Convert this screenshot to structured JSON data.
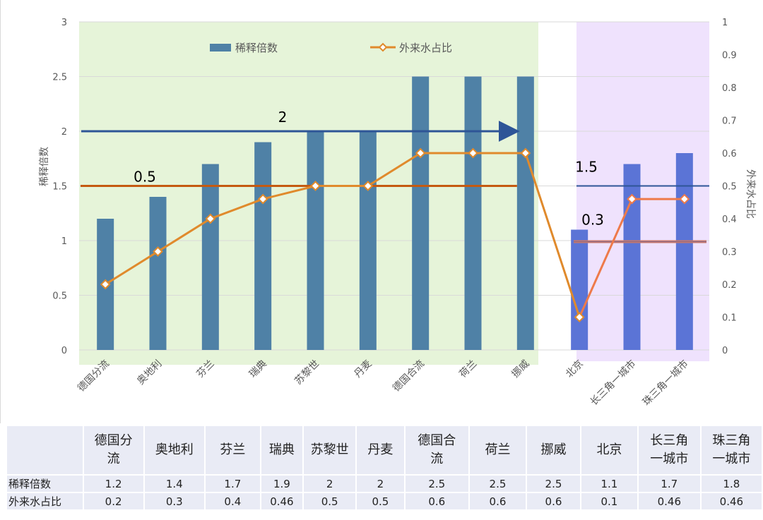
{
  "chart_data": {
    "type": "bar",
    "categories": [
      "德国分流",
      "奥地利",
      "芬兰",
      "瑞典",
      "苏黎世",
      "丹麦",
      "德国合流",
      "荷兰",
      "挪威",
      "北京",
      "长三角一城市",
      "珠三角一城市"
    ],
    "series": [
      {
        "name": "稀释倍数",
        "type": "bar",
        "axis": "left",
        "values": [
          1.2,
          1.4,
          1.7,
          1.9,
          2,
          2,
          2.5,
          2.5,
          2.5,
          1.1,
          1.7,
          1.8
        ]
      },
      {
        "name": "外来水占比",
        "type": "line",
        "axis": "right",
        "values": [
          0.2,
          0.3,
          0.4,
          0.46,
          0.5,
          0.5,
          0.6,
          0.6,
          0.6,
          0.1,
          0.46,
          0.46
        ]
      }
    ],
    "ylabel": "稀释倍数",
    "y2label": "外来水占比",
    "ylim": [
      0,
      3
    ],
    "y2lim": [
      0,
      1
    ],
    "yticks": [
      "0",
      "0.5",
      "1",
      "1.5",
      "2",
      "2.5",
      "3"
    ],
    "y2ticks": [
      "0",
      "0.1",
      "0.2",
      "0.3",
      "0.4",
      "0.5",
      "0.6",
      "0.7",
      "0.8",
      "0.9",
      "1"
    ],
    "grid": true,
    "legend": "top",
    "annotations": [
      {
        "text": "2",
        "ref_value": 2,
        "axis": "left",
        "from": 0,
        "to": 8,
        "color": "#2e5597",
        "arrow": true
      },
      {
        "text": "0.5",
        "ref_value": 0.5,
        "axis": "right",
        "from": 0,
        "to": 8,
        "color": "#c55a11"
      },
      {
        "text": "1.5",
        "ref_value": 0.5,
        "axis": "right",
        "from": 9,
        "to": 11,
        "color": "#2e5597"
      },
      {
        "text": "0.3",
        "ref_value": 0.33,
        "axis": "right",
        "from": 9,
        "to": 11,
        "color": "#c9786a"
      }
    ],
    "colors": {
      "bar_international": "#4f81a6",
      "bar_domestic": "#5b74d6",
      "line_international": "#e08a2c",
      "line_domestic": "#ee7a4a",
      "region_international": "#e6f4d9",
      "region_domestic": "#efe2fd",
      "grid": "#d9d9d9"
    },
    "table": {
      "header": [
        "",
        "德国分\n流",
        "奥地利",
        "芬兰",
        "瑞典",
        "苏黎世",
        "丹麦",
        "德国合\n流",
        "荷兰",
        "挪威",
        "北京",
        "长三角\n一城市",
        "珠三角\n一城市"
      ],
      "rows": [
        [
          "稀释倍数",
          "1.2",
          "1.4",
          "1.7",
          "1.9",
          "2",
          "2",
          "2.5",
          "2.5",
          "2.5",
          "1.1",
          "1.7",
          "1.8"
        ],
        [
          "外来水占比",
          "0.2",
          "0.3",
          "0.4",
          "0.46",
          "0.5",
          "0.5",
          "0.6",
          "0.6",
          "0.6",
          "0.1",
          "0.46",
          "0.46"
        ]
      ]
    }
  }
}
